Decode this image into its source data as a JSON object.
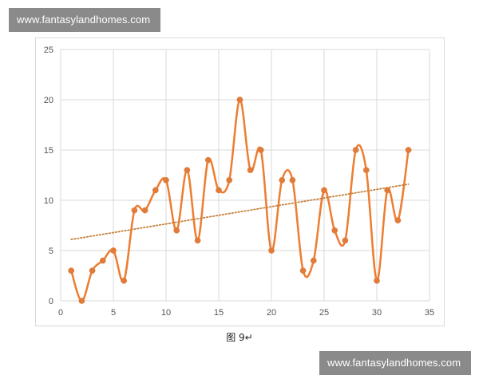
{
  "watermark": {
    "top": "www.fantasylandhomes.com",
    "bottom": "www.fantasylandhomes.com"
  },
  "caption": "图 9↵",
  "colors": {
    "series": "#ED7D31",
    "marker": "#E07B39",
    "trendline": "#C5803A",
    "gridline": "#d9d9d9",
    "watermark_bg": "#8a8a8a"
  },
  "chart_data": {
    "type": "scatter",
    "style": "smooth-line-with-markers",
    "title": "",
    "xlabel": "",
    "ylabel": "",
    "xlim": [
      0,
      35
    ],
    "ylim": [
      0,
      25
    ],
    "x_ticks": [
      0,
      5,
      10,
      15,
      20,
      25,
      30,
      35
    ],
    "y_ticks": [
      0,
      5,
      10,
      15,
      20,
      25
    ],
    "grid": true,
    "legend": "none",
    "series": [
      {
        "x": [
          1,
          2,
          3,
          4,
          5,
          6,
          7,
          8,
          9,
          10,
          11,
          12,
          13,
          14,
          15,
          16,
          17,
          18,
          19,
          20,
          21,
          22,
          23,
          24,
          25,
          26,
          27,
          28,
          29,
          30,
          31,
          32,
          33
        ],
        "y": [
          3,
          0,
          3,
          4,
          5,
          2,
          9,
          9,
          11,
          12,
          7,
          13,
          6,
          14,
          11,
          12,
          20,
          13,
          15,
          5,
          12,
          12,
          3,
          4,
          11,
          7,
          6,
          15,
          13,
          2,
          11,
          8,
          15
        ]
      }
    ],
    "trendline": {
      "type": "linear",
      "x_range": [
        1,
        33
      ],
      "y_range": [
        6.1,
        11.6
      ],
      "style": "dotted"
    }
  }
}
